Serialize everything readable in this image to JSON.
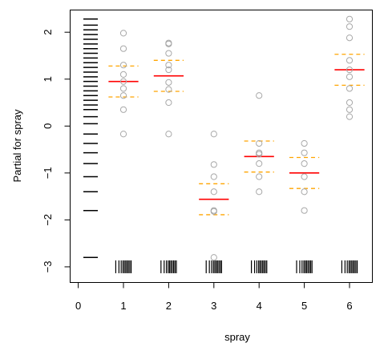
{
  "chart_data": {
    "type": "scatter",
    "title": "",
    "xlabel": "spray",
    "ylabel": "Partial for spray",
    "xlim": [
      -0.2,
      6.5
    ],
    "ylim": [
      -3.2,
      2.4
    ],
    "xticks": [
      "0",
      "1",
      "2",
      "3",
      "4",
      "5",
      "6"
    ],
    "yticks": [
      "−3",
      "−2",
      "−1",
      "0",
      "1",
      "2"
    ],
    "ytick_values": [
      -3,
      -2,
      -1,
      0,
      1,
      2
    ],
    "xtick_values": [
      0,
      1,
      2,
      3,
      4,
      5,
      6
    ],
    "partial_residuals": [
      {
        "level": 1,
        "values": [
          1.98,
          1.65,
          1.3,
          1.1,
          0.95,
          0.8,
          0.65,
          0.35,
          -0.17
        ]
      },
      {
        "level": 2,
        "values": [
          1.77,
          1.75,
          1.55,
          1.3,
          1.2,
          0.93,
          0.78,
          0.5,
          -0.17
        ]
      },
      {
        "level": 3,
        "values": [
          -0.17,
          -0.82,
          -1.08,
          -1.4,
          -1.8,
          -1.82,
          -2.8
        ]
      },
      {
        "level": 4,
        "values": [
          0.65,
          -0.37,
          -0.57,
          -0.6,
          -0.8,
          -1.08,
          -1.4
        ]
      },
      {
        "level": 5,
        "values": [
          -0.37,
          -0.57,
          -0.8,
          -1.08,
          -1.4,
          -1.8
        ]
      },
      {
        "level": 6,
        "values": [
          2.28,
          2.12,
          1.88,
          1.4,
          1.2,
          1.05,
          0.8,
          0.5,
          0.35,
          0.2
        ]
      }
    ],
    "fitted": [
      {
        "level": 1,
        "fit": 0.95,
        "lower": 0.62,
        "upper": 1.28
      },
      {
        "level": 2,
        "fit": 1.07,
        "lower": 0.74,
        "upper": 1.4
      },
      {
        "level": 3,
        "fit": -1.56,
        "lower": -1.89,
        "upper": -1.23
      },
      {
        "level": 4,
        "fit": -0.65,
        "lower": -0.98,
        "upper": -0.32
      },
      {
        "level": 5,
        "fit": -1.0,
        "lower": -1.33,
        "upper": -0.67
      },
      {
        "level": 6,
        "fit": 1.2,
        "lower": 0.87,
        "upper": 1.53
      }
    ],
    "y_rug": [
      2.28,
      2.15,
      2.05,
      1.95,
      1.85,
      1.75,
      1.65,
      1.55,
      1.45,
      1.35,
      1.25,
      1.15,
      1.05,
      0.95,
      0.85,
      0.75,
      0.65,
      0.55,
      0.45,
      0.35,
      0.2,
      0.05,
      -0.17,
      -0.37,
      -0.57,
      -0.8,
      -1.08,
      -1.4,
      -1.8,
      -2.8
    ],
    "x_rug_offsets": [
      -0.17,
      -0.1,
      -0.05,
      -0.01,
      0.02,
      0.05,
      0.08,
      0.11,
      0.14,
      0.17
    ],
    "x_rug_y": -3.0,
    "grid": false,
    "colors": {
      "points": "#a8a8a8",
      "fit": "#ff0000",
      "band": "#ffa500",
      "rug": "#000000",
      "axis": "#000000"
    }
  }
}
